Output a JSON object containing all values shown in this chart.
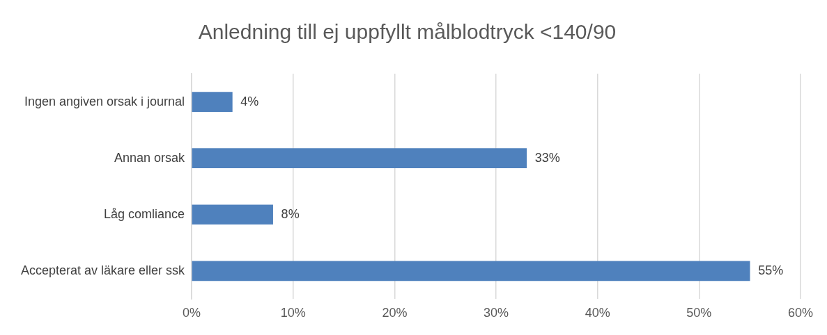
{
  "chart_data": {
    "type": "bar",
    "orientation": "horizontal",
    "title": "Anledning till ej uppfyllt målblodtryck <140/90",
    "categories": [
      "Ingen angiven orsak i journal",
      "Annan orsak",
      "Låg comliance",
      "Accepterat av läkare eller ssk"
    ],
    "values": [
      4,
      33,
      8,
      55
    ],
    "color": "#4f81bd",
    "value_labels": [
      "4%",
      "33%",
      "8%",
      "55%"
    ],
    "xlim": [
      0,
      60
    ],
    "xticks": [
      {
        "value": 0,
        "label": "0%"
      },
      {
        "value": 10,
        "label": "10%"
      },
      {
        "value": 20,
        "label": "20%"
      },
      {
        "value": 30,
        "label": "30%"
      },
      {
        "value": 40,
        "label": "40%"
      },
      {
        "value": 50,
        "label": "50%"
      },
      {
        "value": 60,
        "label": "60%"
      }
    ],
    "grid": "x",
    "legend": false
  }
}
